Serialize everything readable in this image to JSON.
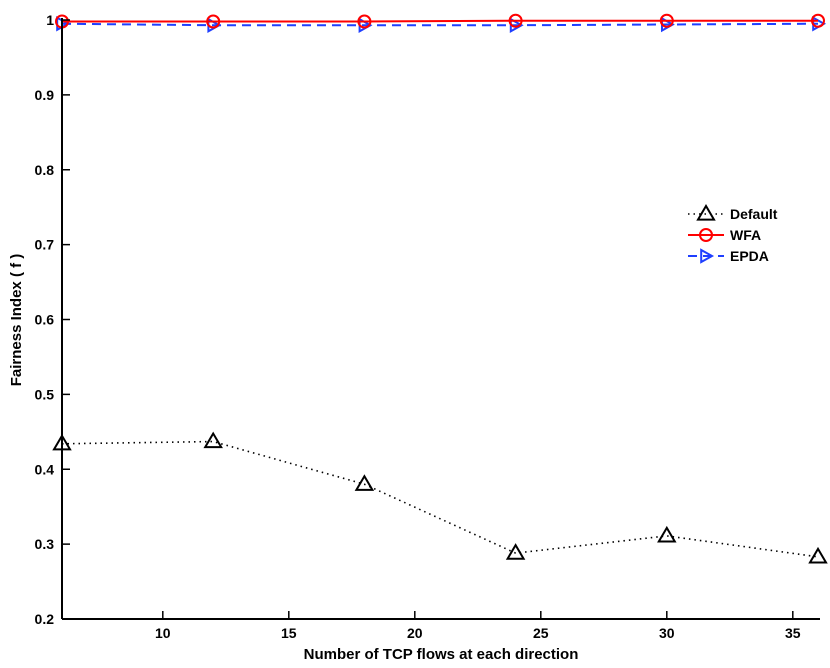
{
  "chart_data": {
    "type": "line",
    "xlabel": "Number of TCP flows at each direction",
    "ylabel": "Fairness Index ( f )",
    "xlim": [
      6,
      36
    ],
    "ylim": [
      0.2,
      1.0
    ],
    "xticks": [
      10,
      15,
      20,
      25,
      30,
      35
    ],
    "yticks": [
      0.2,
      0.3,
      0.4,
      0.5,
      0.6,
      0.7,
      0.8,
      0.9,
      1.0
    ],
    "ytick_labels": [
      "0.2",
      "0.3",
      "0.4",
      "0.5",
      "0.6",
      "0.7",
      "0.8",
      "0.9",
      "1"
    ],
    "x": [
      6,
      12,
      18,
      24,
      30,
      36
    ],
    "legend_position": "right",
    "series": [
      {
        "name": "Default",
        "values": [
          0.434,
          0.437,
          0.38,
          0.288,
          0.311,
          0.283
        ],
        "color": "#000000",
        "line_style": "dotted",
        "marker": "triangle-up"
      },
      {
        "name": "WFA",
        "values": [
          0.998,
          0.998,
          0.998,
          0.999,
          0.999,
          0.999
        ],
        "color": "#ff0000",
        "line_style": "solid",
        "marker": "circle"
      },
      {
        "name": "EPDA",
        "values": [
          0.995,
          0.993,
          0.993,
          0.993,
          0.994,
          0.995
        ],
        "color": "#1f3fff",
        "line_style": "dashed",
        "marker": "triangle-right"
      }
    ]
  }
}
